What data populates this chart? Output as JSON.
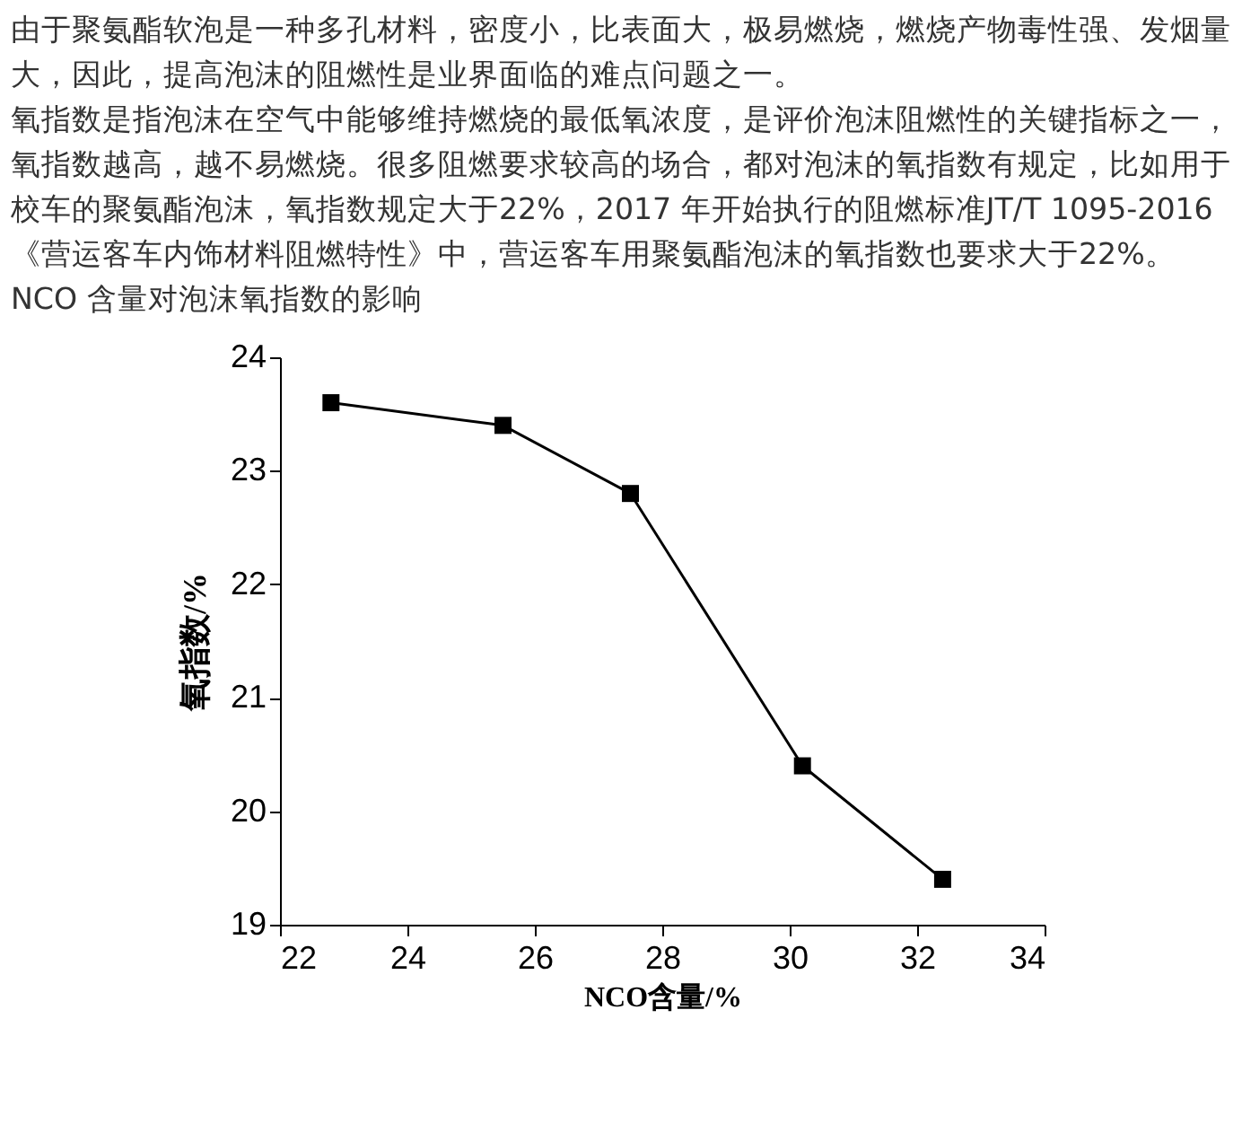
{
  "chart_data": {
    "type": "line",
    "title": "NCO 含量对泡沫氧指数的影响",
    "annotations": [
      "由于聚氨酯软泡是一种多孔材料，密度小，比表面大，极易燃烧，燃烧产物毒性强、发烟量大，因此，提高泡沫的阻燃性是业界面临的难点问题之一。",
      "氧指数是指泡沫在空气中能够维持燃烧的最低氧浓度，是评价泡沫阻燃性的关键指标之一，氧指数越高，越不易燃烧。很多阻燃要求较高的场合，都对泡沫的氧指数有规定，比如用于校车的聚氨酯泡沫，氧指数规定大于22%，2017 年开始执行的阻燃标准JT/T 1095-2016《营运客车内饰材料阻燃特性》中，营运客车用聚氨酯泡沫的氧指数也要求大于22%。"
    ],
    "xlabel": "NCO含量/%",
    "ylabel": "氧指数/%",
    "x": [
      22.8,
      25.5,
      27.5,
      30.2,
      32.4
    ],
    "series": [
      {
        "color": "#000000",
        "values": [
          23.6,
          23.4,
          22.8,
          20.4,
          19.4
        ]
      }
    ],
    "xlim": [
      22,
      34
    ],
    "xticks": [
      22,
      24,
      26,
      28,
      30,
      32,
      34
    ],
    "ylim": [
      19,
      24
    ],
    "yticks": [
      19,
      20,
      21,
      22,
      23,
      24
    ],
    "grid": false,
    "legend": false,
    "marker": "square",
    "line_style": "solid"
  }
}
